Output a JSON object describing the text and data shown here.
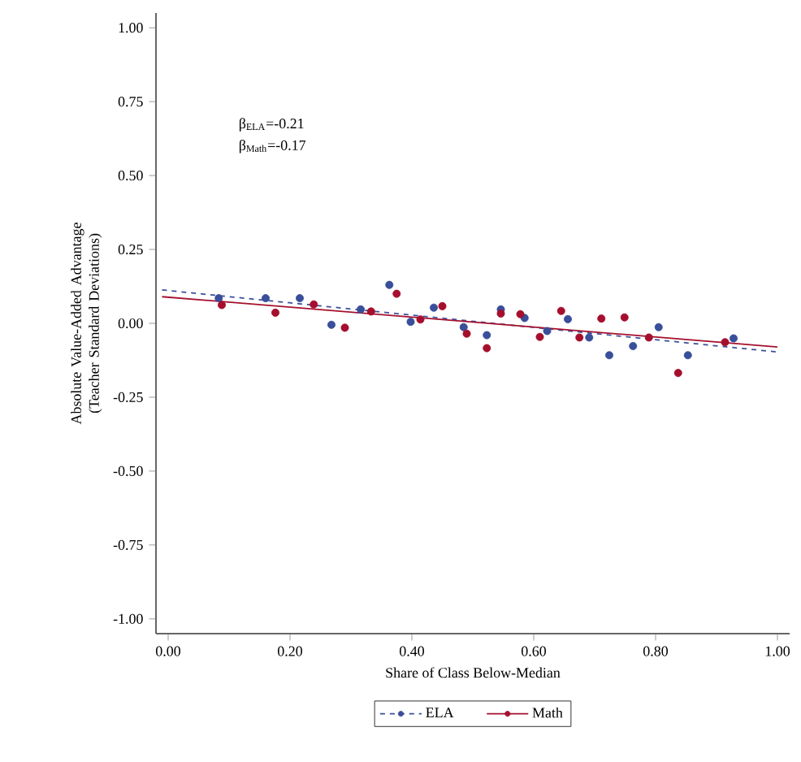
{
  "chart_data": {
    "type": "scatter",
    "xlabel": "Share of Class Below-Median",
    "ylabel": "Absolute Value-Added Advantage (Teacher Standard Deviations)",
    "annotations": [
      "β$_{ELA}$=-0.21",
      "β$_{Math}$=-0.17"
    ],
    "xlim": [
      -0.02,
      1.02
    ],
    "ylim": [
      -1.05,
      1.05
    ],
    "xticks": [
      {
        "value": 0,
        "label": "0.00"
      },
      {
        "value": 0.2,
        "label": "0.20"
      },
      {
        "value": 0.4,
        "label": "0.40"
      },
      {
        "value": 0.6,
        "label": "0.60"
      },
      {
        "value": 0.8,
        "label": "0.80"
      },
      {
        "value": 1,
        "label": "1.00"
      }
    ],
    "yticks": [
      {
        "value": -1,
        "label": "-1.00"
      },
      {
        "value": -0.75,
        "label": "-0.75"
      },
      {
        "value": -0.5,
        "label": "-0.50"
      },
      {
        "value": -0.25,
        "label": "-0.25"
      },
      {
        "value": 0,
        "label": "0.00"
      },
      {
        "value": 0.25,
        "label": "0.25"
      },
      {
        "value": 0.5,
        "label": "0.50"
      },
      {
        "value": 0.75,
        "label": "0.75"
      },
      {
        "value": 1,
        "label": "1.00"
      }
    ],
    "grid": false,
    "legend": "bottom",
    "series": [
      {
        "name": "ELA",
        "marker": "circle",
        "color": "#3a4f9a",
        "x": [
          0.083,
          0.16,
          0.216,
          0.268,
          0.316,
          0.363,
          0.398,
          0.436,
          0.485,
          0.523,
          0.546,
          0.585,
          0.622,
          0.656,
          0.691,
          0.724,
          0.763,
          0.805,
          0.853,
          0.928
        ],
        "values": [
          0.085,
          0.085,
          0.085,
          -0.005,
          0.047,
          0.13,
          0.005,
          0.053,
          -0.013,
          -0.04,
          0.047,
          0.018,
          -0.026,
          0.014,
          -0.048,
          -0.108,
          -0.077,
          -0.013,
          -0.108,
          -0.051
        ]
      },
      {
        "type": "line",
        "marker": "none",
        "color": "#3a4f9a",
        "line_style": "dashed",
        "x": [
          -0.01,
          1.0
        ],
        "values": [
          0.113,
          -0.097
        ]
      },
      {
        "name": "Math",
        "marker": "circle",
        "color": "#a50f2d",
        "x": [
          0.088,
          0.176,
          0.239,
          0.29,
          0.333,
          0.375,
          0.414,
          0.45,
          0.49,
          0.523,
          0.546,
          0.578,
          0.61,
          0.645,
          0.675,
          0.711,
          0.749,
          0.789,
          0.837,
          0.914
        ],
        "values": [
          0.062,
          0.036,
          0.064,
          -0.015,
          0.04,
          0.1,
          0.013,
          0.058,
          -0.035,
          -0.084,
          0.033,
          0.031,
          -0.046,
          0.042,
          -0.048,
          0.016,
          0.02,
          -0.048,
          -0.168,
          -0.064
        ]
      },
      {
        "type": "line",
        "marker": "none",
        "color": "#a50f2d",
        "line_style": "solid",
        "x": [
          -0.01,
          1.0
        ],
        "values": [
          0.09,
          -0.08
        ]
      }
    ]
  }
}
